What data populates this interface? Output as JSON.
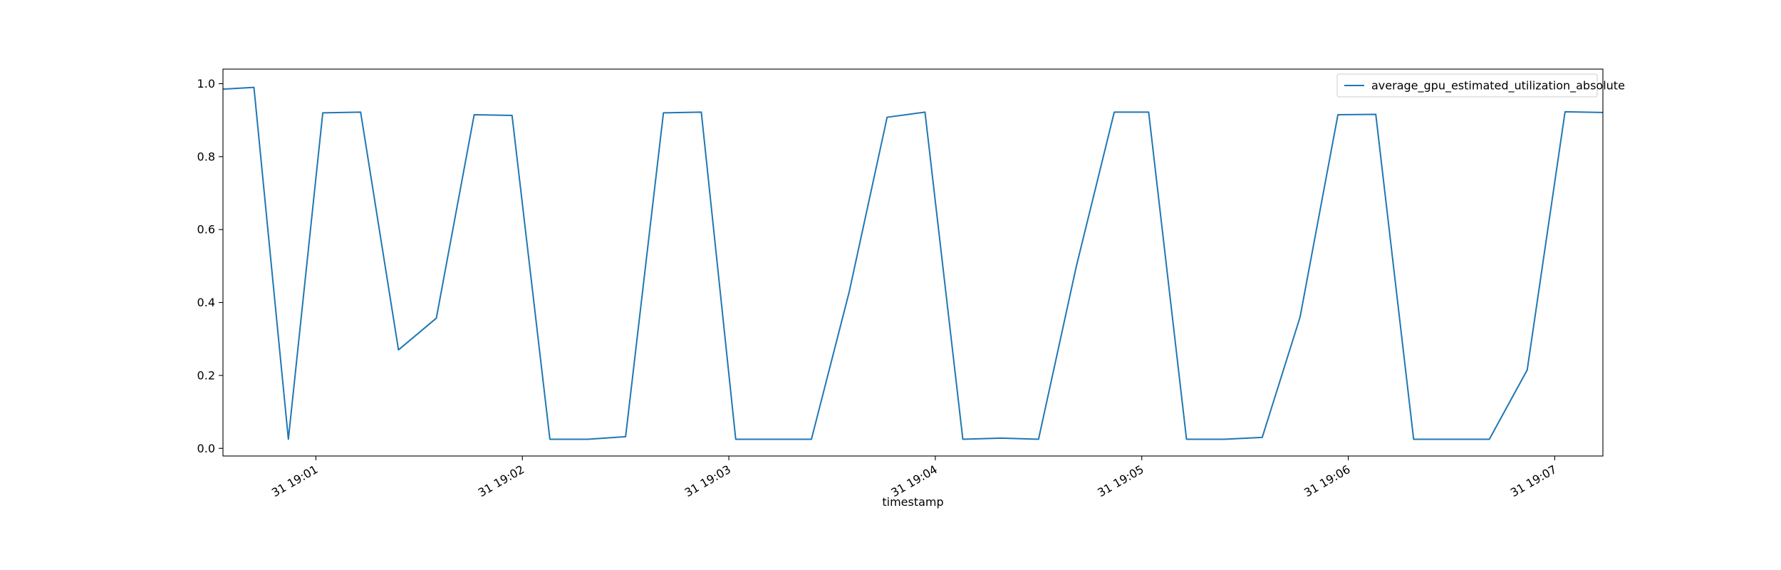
{
  "chart_data": {
    "type": "line",
    "title": "",
    "xlabel": "timestamp",
    "ylabel": "",
    "x_range": [
      "19:00:33",
      "19:07:14"
    ],
    "ylim": [
      -0.021,
      1.04
    ],
    "grid": false,
    "legend_position": "top-right",
    "x_ticks": [
      {
        "value": "19:01:00",
        "label": "31 19:01"
      },
      {
        "value": "19:02:00",
        "label": "31 19:02"
      },
      {
        "value": "19:03:00",
        "label": "31 19:03"
      },
      {
        "value": "19:04:00",
        "label": "31 19:04"
      },
      {
        "value": "19:05:00",
        "label": "31 19:05"
      },
      {
        "value": "19:06:00",
        "label": "31 19:06"
      },
      {
        "value": "19:07:00",
        "label": "31 19:07"
      }
    ],
    "y_ticks": [
      {
        "value": 0.0,
        "label": "0.0"
      },
      {
        "value": 0.2,
        "label": "0.2"
      },
      {
        "value": 0.4,
        "label": "0.4"
      },
      {
        "value": 0.6,
        "label": "0.6"
      },
      {
        "value": 0.8,
        "label": "0.8"
      },
      {
        "value": 1.0,
        "label": "1.0"
      }
    ],
    "series": [
      {
        "name": "average_gpu_estimated_utilization_absolute",
        "color": "#1f77b4",
        "x": [
          "19:00:33",
          "19:00:42",
          "19:00:52",
          "19:01:02",
          "19:01:13",
          "19:01:24",
          "19:01:35",
          "19:01:46",
          "19:01:57",
          "19:02:08",
          "19:02:19",
          "19:02:30",
          "19:02:41",
          "19:02:52",
          "19:03:02",
          "19:03:13",
          "19:03:24",
          "19:03:35",
          "19:03:46",
          "19:03:57",
          "19:04:08",
          "19:04:19",
          "19:04:30",
          "19:04:41",
          "19:04:52",
          "19:05:02",
          "19:05:13",
          "19:05:24",
          "19:05:35",
          "19:05:46",
          "19:05:57",
          "19:06:08",
          "19:06:19",
          "19:06:30",
          "19:06:41",
          "19:06:52",
          "19:07:03",
          "19:07:14"
        ],
        "y": [
          0.985,
          0.99,
          0.025,
          0.92,
          0.922,
          0.27,
          0.357,
          0.915,
          0.913,
          0.025,
          0.025,
          0.032,
          0.92,
          0.922,
          0.025,
          0.025,
          0.025,
          0.43,
          0.908,
          0.922,
          0.025,
          0.028,
          0.025,
          0.5,
          0.922,
          0.922,
          0.025,
          0.025,
          0.03,
          0.36,
          0.915,
          0.916,
          0.025,
          0.025,
          0.025,
          0.215,
          0.923,
          0.921
        ]
      }
    ]
  }
}
